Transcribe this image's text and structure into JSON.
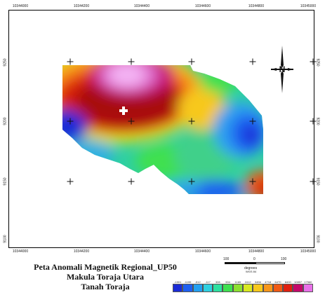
{
  "map": {
    "top_ticks": [
      "10344000",
      "10344200",
      "10344400",
      "10344600",
      "10344800",
      "10345000"
    ],
    "bottom_ticks": [
      "10344000",
      "10344200",
      "10344400",
      "10344600",
      "10344800",
      "10345000"
    ],
    "left_ticks": [
      "9250",
      "9200",
      "9150",
      "9100"
    ],
    "right_ticks": [
      "9250",
      "9200",
      "9150",
      "9100"
    ],
    "north_label": "N"
  },
  "title": {
    "line1": "Peta Anomali Magnetik Regional_UP50",
    "line2": "Makula Toraja Utara",
    "line3": "Tanah Toraja"
  },
  "scale": {
    "left": "100",
    "mid": "0",
    "right": "100",
    "unit": "degrees",
    "sub": "WGS 84"
  },
  "colorbar": {
    "labels": [
      "-1901",
      "-1199",
      "-512",
      "-117",
      "328",
      "904",
      "1169",
      "2412",
      "3456",
      "4718",
      "6470",
      "8400",
      "10857",
      "17560"
    ],
    "colors": [
      "#1a2bd6",
      "#1e60f0",
      "#23a0f0",
      "#2fd0e0",
      "#2ee0a0",
      "#3fe050",
      "#8de030",
      "#d8e820",
      "#f7c81c",
      "#f7961a",
      "#f05a14",
      "#e02010",
      "#c4086a",
      "#e870e8"
    ]
  }
}
